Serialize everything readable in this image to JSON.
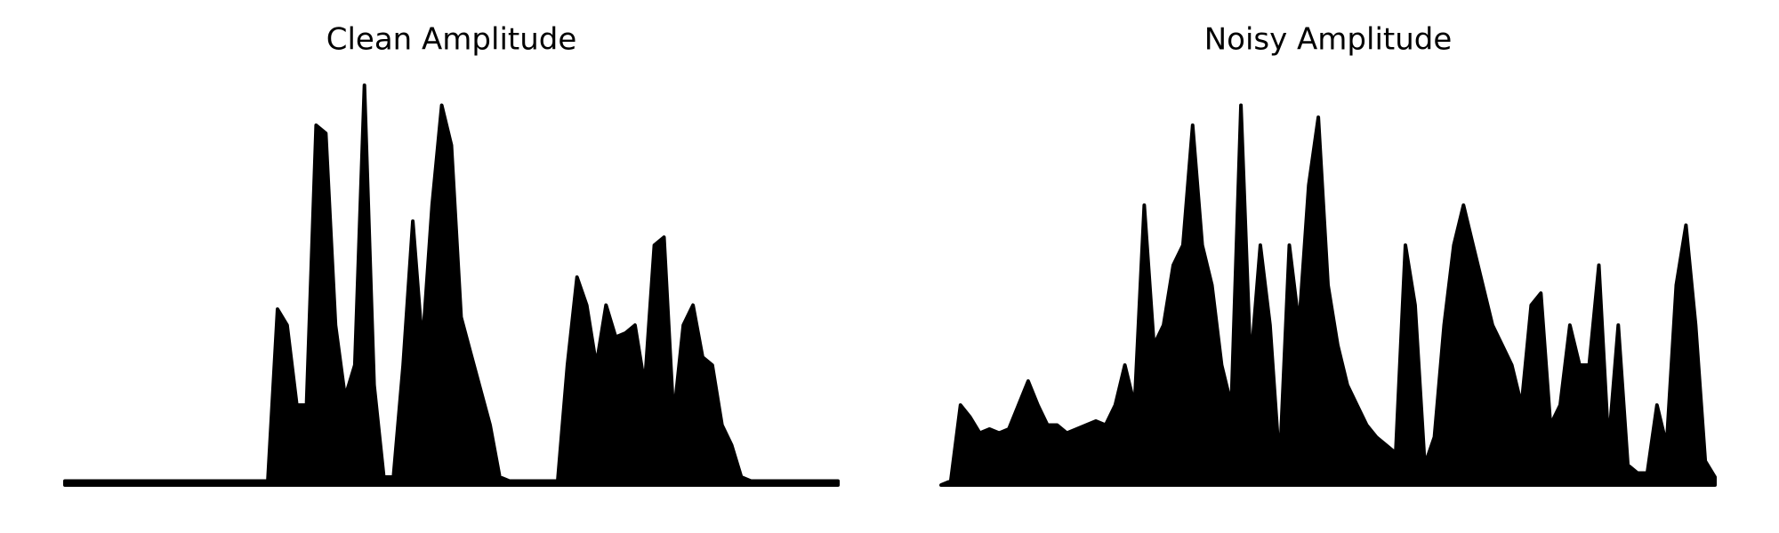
{
  "chart_data": [
    {
      "type": "area",
      "title": "Clean Amplitude",
      "color": "#000000",
      "ylim": [
        0,
        1
      ],
      "values": [
        0.01,
        0.01,
        0.01,
        0.01,
        0.01,
        0.01,
        0.01,
        0.01,
        0.01,
        0.01,
        0.01,
        0.01,
        0.01,
        0.01,
        0.01,
        0.01,
        0.01,
        0.01,
        0.01,
        0.01,
        0.01,
        0.01,
        0.44,
        0.4,
        0.2,
        0.2,
        0.9,
        0.88,
        0.4,
        0.22,
        0.3,
        1.0,
        0.25,
        0.02,
        0.02,
        0.3,
        0.66,
        0.35,
        0.7,
        0.95,
        0.85,
        0.42,
        0.33,
        0.24,
        0.15,
        0.02,
        0.01,
        0.01,
        0.01,
        0.01,
        0.01,
        0.01,
        0.3,
        0.52,
        0.45,
        0.3,
        0.45,
        0.37,
        0.38,
        0.4,
        0.25,
        0.6,
        0.62,
        0.17,
        0.4,
        0.45,
        0.32,
        0.3,
        0.15,
        0.1,
        0.02,
        0.01,
        0.01,
        0.01,
        0.01,
        0.01,
        0.01,
        0.01,
        0.01,
        0.01,
        0.01
      ]
    },
    {
      "type": "area",
      "title": "Noisy Amplitude",
      "color": "#000000",
      "ylim": [
        0,
        1
      ],
      "values": [
        0.0,
        0.01,
        0.2,
        0.17,
        0.13,
        0.14,
        0.13,
        0.14,
        0.2,
        0.26,
        0.2,
        0.15,
        0.15,
        0.13,
        0.14,
        0.15,
        0.16,
        0.15,
        0.2,
        0.3,
        0.2,
        0.7,
        0.35,
        0.4,
        0.55,
        0.6,
        0.9,
        0.6,
        0.5,
        0.3,
        0.2,
        0.95,
        0.3,
        0.6,
        0.4,
        0.05,
        0.6,
        0.4,
        0.75,
        0.92,
        0.5,
        0.35,
        0.25,
        0.2,
        0.15,
        0.12,
        0.1,
        0.08,
        0.6,
        0.45,
        0.05,
        0.12,
        0.4,
        0.6,
        0.7,
        0.6,
        0.5,
        0.4,
        0.35,
        0.3,
        0.2,
        0.45,
        0.48,
        0.15,
        0.2,
        0.4,
        0.3,
        0.3,
        0.55,
        0.1,
        0.4,
        0.05,
        0.03,
        0.03,
        0.2,
        0.1,
        0.5,
        0.65,
        0.4,
        0.06,
        0.02
      ]
    }
  ]
}
